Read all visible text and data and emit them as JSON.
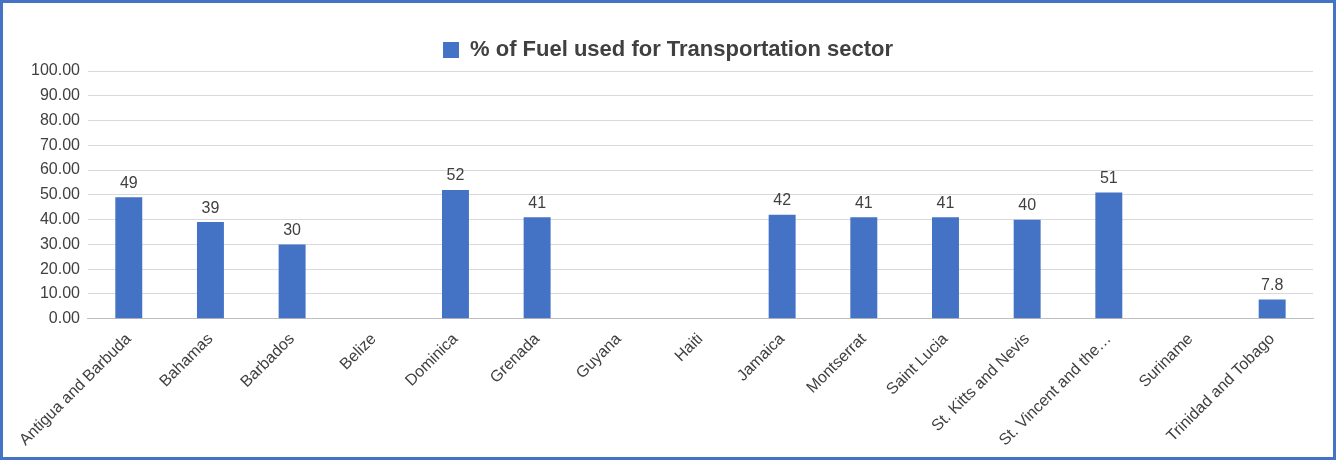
{
  "chart_data": {
    "type": "bar",
    "categories": [
      "Antigua and Barbuda",
      "Bahamas",
      "Barbados",
      "Belize",
      "Dominica",
      "Grenada",
      "Guyana",
      "Haiti",
      "Jamaica",
      "Montserrat",
      "Saint Lucia",
      "St. Kitts and Nevis",
      "St. Vincent and the…",
      "Suriname",
      "Trinidad and Tobago"
    ],
    "series": [
      {
        "name": "% of Fuel used for Transportation sector",
        "color": "#4472c4",
        "values": [
          49,
          39,
          30,
          null,
          52,
          41,
          null,
          null,
          42,
          41,
          41,
          40,
          51,
          null,
          7.8
        ]
      }
    ],
    "ylim": [
      0,
      100
    ],
    "yticks": [
      {
        "value": 0,
        "label": "0.00"
      },
      {
        "value": 10,
        "label": "10.00"
      },
      {
        "value": 20,
        "label": "20.00"
      },
      {
        "value": 30,
        "label": "30.00"
      },
      {
        "value": 40,
        "label": "40.00"
      },
      {
        "value": 50,
        "label": "50.00"
      },
      {
        "value": 60,
        "label": "60.00"
      },
      {
        "value": 70,
        "label": "70.00"
      },
      {
        "value": 80,
        "label": "80.00"
      },
      {
        "value": 90,
        "label": "90.00"
      },
      {
        "value": 100,
        "label": "100.00"
      }
    ],
    "grid": "y",
    "legend": "top",
    "data_labels": true
  }
}
